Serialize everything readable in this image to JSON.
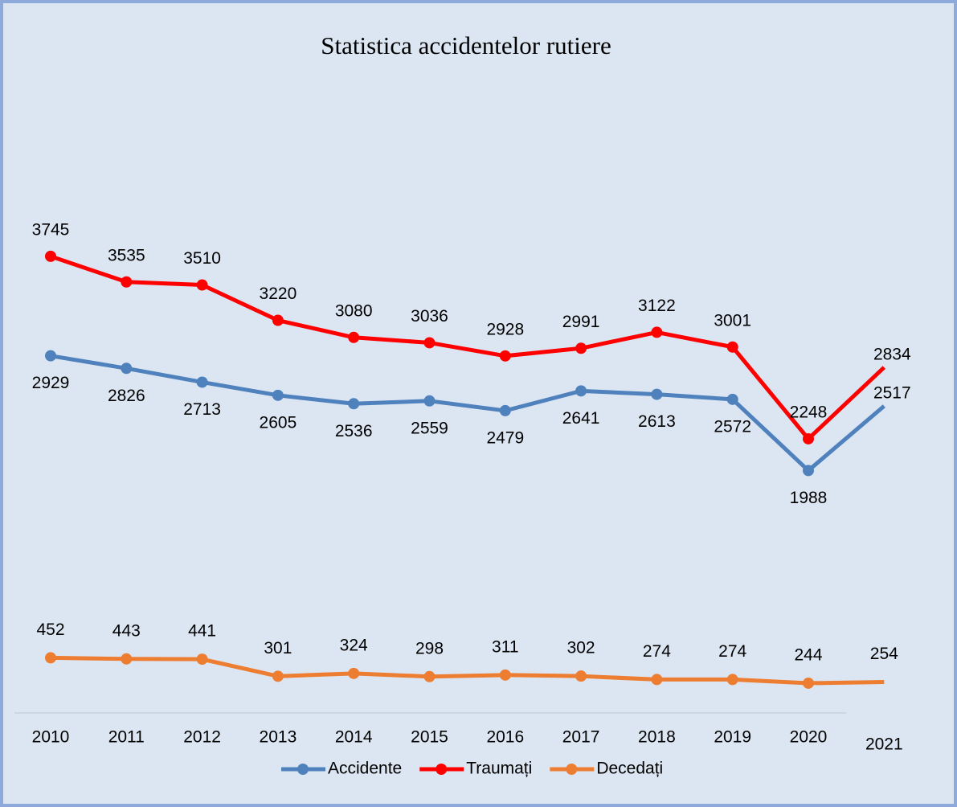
{
  "chart_data": {
    "type": "line",
    "title": "Statistica accidentelor rutiere",
    "categories": [
      "2010",
      "2011",
      "2012",
      "2013",
      "2014",
      "2015",
      "2016",
      "2017",
      "2018",
      "2019",
      "2020",
      "2021"
    ],
    "series": [
      {
        "name": "Accidente",
        "color": "#4f81bd",
        "values": [
          2929,
          2826,
          2713,
          2605,
          2536,
          2559,
          2479,
          2641,
          2613,
          2572,
          1988,
          2517
        ]
      },
      {
        "name": "Traumați",
        "color": "#ff0000",
        "values": [
          3745,
          3535,
          3510,
          3220,
          3080,
          3036,
          2928,
          2991,
          3122,
          3001,
          2248,
          2834
        ]
      },
      {
        "name": "Decedați",
        "color": "#ed7d31",
        "values": [
          452,
          443,
          441,
          301,
          324,
          298,
          311,
          302,
          274,
          274,
          244,
          254
        ]
      }
    ],
    "ylim": [
      0,
      4500
    ],
    "grid": false,
    "legend": "bottom"
  }
}
